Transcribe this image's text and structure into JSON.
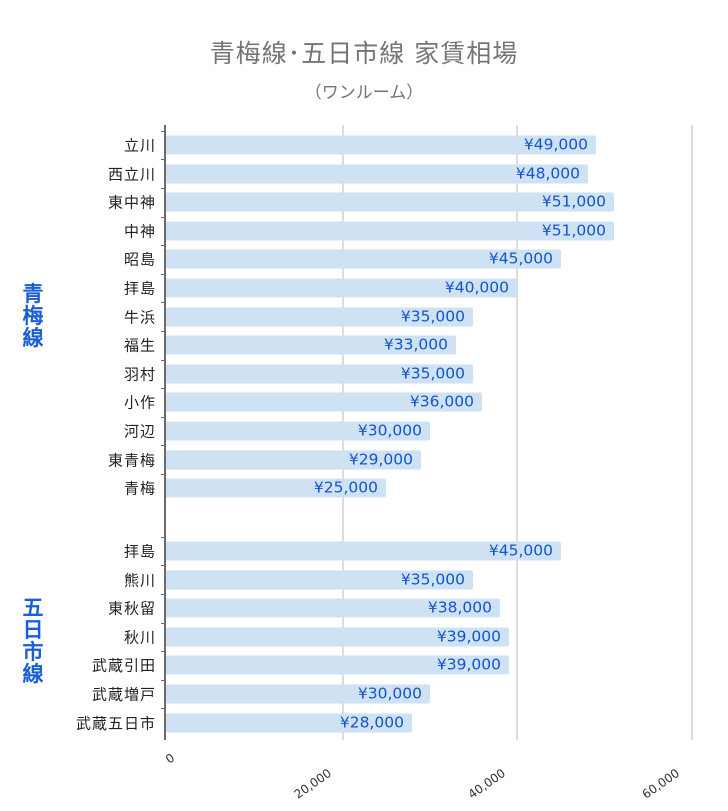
{
  "title": "青梅線･五日市線 家賃相場",
  "subtitle": "（ワンルーム）",
  "colors": {
    "bar": "#cfe2f3",
    "value_label": "#1155cc",
    "group_label": "#1a5fd6",
    "title": "#757575",
    "gridline": "#dcdcdc"
  },
  "groups": [
    {
      "label": "青梅線",
      "chars": [
        "青",
        "梅",
        "線"
      ]
    },
    {
      "label": "五日市線",
      "chars": [
        "五",
        "日",
        "市",
        "線"
      ]
    }
  ],
  "x_axis": {
    "ticks": [
      "0",
      "20,000",
      "40,000",
      "60,000"
    ]
  },
  "rows": [
    {
      "station": "立川",
      "value_label": "¥49,000"
    },
    {
      "station": "西立川",
      "value_label": "¥48,000"
    },
    {
      "station": "東中神",
      "value_label": "¥51,000"
    },
    {
      "station": "中神",
      "value_label": "¥51,000"
    },
    {
      "station": "昭島",
      "value_label": "¥45,000"
    },
    {
      "station": "拝島",
      "value_label": "¥40,000"
    },
    {
      "station": "牛浜",
      "value_label": "¥35,000"
    },
    {
      "station": "福生",
      "value_label": "¥33,000"
    },
    {
      "station": "羽村",
      "value_label": "¥35,000"
    },
    {
      "station": "小作",
      "value_label": "¥36,000"
    },
    {
      "station": "河辺",
      "value_label": "¥30,000"
    },
    {
      "station": "東青梅",
      "value_label": "¥29,000"
    },
    {
      "station": "青梅",
      "value_label": "¥25,000"
    },
    {
      "station": "拝島",
      "value_label": "¥45,000"
    },
    {
      "station": "熊川",
      "value_label": "¥35,000"
    },
    {
      "station": "東秋留",
      "value_label": "¥38,000"
    },
    {
      "station": "秋川",
      "value_label": "¥39,000"
    },
    {
      "station": "武蔵引田",
      "value_label": "¥39,000"
    },
    {
      "station": "武蔵増戸",
      "value_label": "¥30,000"
    },
    {
      "station": "武蔵五日市",
      "value_label": "¥28,000"
    }
  ],
  "chart_data": {
    "type": "bar",
    "orientation": "horizontal",
    "title": "青梅線･五日市線 家賃相場",
    "subtitle": "（ワンルーム）",
    "xlabel": "",
    "ylabel": "",
    "xlim": [
      0,
      60000
    ],
    "x_ticks": [
      0,
      20000,
      40000,
      60000
    ],
    "grid": true,
    "legend": null,
    "groups": [
      {
        "name": "青梅線",
        "categories": [
          "立川",
          "西立川",
          "東中神",
          "中神",
          "昭島",
          "拝島",
          "牛浜",
          "福生",
          "羽村",
          "小作",
          "河辺",
          "東青梅",
          "青梅"
        ],
        "values": [
          49000,
          48000,
          51000,
          51000,
          45000,
          40000,
          35000,
          33000,
          35000,
          36000,
          30000,
          29000,
          25000
        ]
      },
      {
        "name": "五日市線",
        "categories": [
          "拝島",
          "熊川",
          "東秋留",
          "秋川",
          "武蔵引田",
          "武蔵増戸",
          "武蔵五日市"
        ],
        "values": [
          45000,
          35000,
          38000,
          39000,
          39000,
          30000,
          28000
        ]
      }
    ],
    "data_labels": [
      "¥49,000",
      "¥48,000",
      "¥51,000",
      "¥51,000",
      "¥45,000",
      "¥40,000",
      "¥35,000",
      "¥33,000",
      "¥35,000",
      "¥36,000",
      "¥30,000",
      "¥29,000",
      "¥25,000",
      "¥45,000",
      "¥35,000",
      "¥38,000",
      "¥39,000",
      "¥39,000",
      "¥30,000",
      "¥28,000"
    ]
  }
}
